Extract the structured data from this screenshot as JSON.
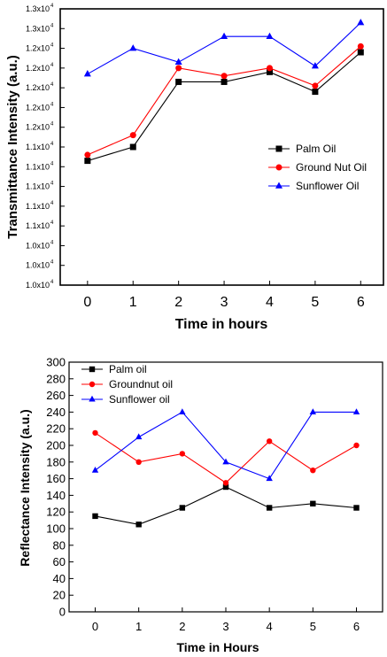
{
  "chart_data": [
    {
      "type": "line",
      "xlabel": "Time in hours",
      "ylabel": "Transmittance Intensity (a.u.)",
      "x": [
        0,
        1,
        2,
        3,
        4,
        5,
        6
      ],
      "xlim": [
        -0.6,
        6.5
      ],
      "ylim": [
        0,
        14
      ],
      "yticks": [
        "1.0x10^4",
        "1.0x10^4",
        "1.0x10^4",
        "1.1x10^4",
        "1.1x10^4",
        "1.1x10^4",
        "1.1x10^4",
        "1.1x10^4",
        "1.2x10^4",
        "1.2x10^4",
        "1.2x10^4",
        "1.2x10^4",
        "1.2x10^4",
        "1.3x10^4",
        "1.3x10^4"
      ],
      "ytick_display": [
        {
          "mantissa": "1.0x10",
          "exp": "4"
        },
        {
          "mantissa": "1.0x10",
          "exp": "4"
        },
        {
          "mantissa": "1.0x10",
          "exp": "4"
        },
        {
          "mantissa": "1.1x10",
          "exp": "4"
        },
        {
          "mantissa": "1.1x10",
          "exp": "4"
        },
        {
          "mantissa": "1.1x10",
          "exp": "4"
        },
        {
          "mantissa": "1.1x10",
          "exp": "4"
        },
        {
          "mantissa": "1.1x10",
          "exp": "4"
        },
        {
          "mantissa": "1.2x10",
          "exp": "4"
        },
        {
          "mantissa": "1.2x10",
          "exp": "4"
        },
        {
          "mantissa": "1.2x10",
          "exp": "4"
        },
        {
          "mantissa": "1.2x10",
          "exp": "4"
        },
        {
          "mantissa": "1.2x10",
          "exp": "4"
        },
        {
          "mantissa": "1.3x10",
          "exp": "4"
        },
        {
          "mantissa": "1.3x10",
          "exp": "4"
        }
      ],
      "legend_position": "center-right",
      "grid": false,
      "series": [
        {
          "name": "Palm Oil",
          "marker": "square",
          "color": "#000000",
          "values": [
            6.3,
            7.0,
            10.3,
            10.3,
            10.8,
            9.8,
            11.8
          ]
        },
        {
          "name": "Ground Nut Oil",
          "marker": "circle",
          "color": "#ff0000",
          "values": [
            6.6,
            7.6,
            11.0,
            10.6,
            11.0,
            10.1,
            12.1
          ]
        },
        {
          "name": "Sunflower Oil",
          "marker": "triangle",
          "color": "#0000ff",
          "values": [
            10.7,
            12.0,
            11.3,
            12.6,
            12.6,
            11.1,
            13.3
          ]
        }
      ]
    },
    {
      "type": "line",
      "xlabel": "Time in Hours",
      "ylabel": "Reflectance Intensity (a.u.)",
      "x": [
        0,
        1,
        2,
        3,
        4,
        5,
        6
      ],
      "xlim": [
        -0.6,
        6.6
      ],
      "ylim": [
        0,
        300
      ],
      "yticks": [
        0,
        20,
        40,
        60,
        80,
        100,
        120,
        140,
        160,
        180,
        200,
        220,
        240,
        260,
        280,
        300
      ],
      "legend_position": "top-left",
      "grid": false,
      "series": [
        {
          "name": "Palm oil",
          "marker": "square",
          "color": "#000000",
          "values": [
            115,
            105,
            125,
            150,
            125,
            130,
            125
          ]
        },
        {
          "name": "Groundnut oil",
          "marker": "circle",
          "color": "#ff0000",
          "values": [
            215,
            180,
            190,
            155,
            205,
            170,
            200
          ]
        },
        {
          "name": "Sunflower oil",
          "marker": "triangle",
          "color": "#0000ff",
          "values": [
            170,
            210,
            240,
            180,
            160,
            240,
            240
          ]
        }
      ]
    }
  ]
}
